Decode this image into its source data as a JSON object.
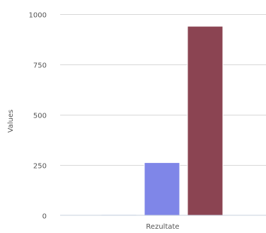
{
  "chart_data": {
    "type": "bar",
    "categories": [
      "Rezultate"
    ],
    "series": [
      {
        "values": [
          5
        ],
        "color": "#e8eef8"
      },
      {
        "values": [
          262
        ],
        "color": "#7f86e8"
      },
      {
        "values": [
          940
        ],
        "color": "#8b4452"
      }
    ],
    "title": "",
    "xlabel": "",
    "ylabel": "Values",
    "ylim": [
      0,
      1000
    ],
    "yticks": [
      0,
      250,
      500,
      750,
      1000
    ],
    "yticks_labels": [
      "0",
      "250",
      "500",
      "750",
      "1000"
    ],
    "grid": true,
    "legend": "none"
  }
}
